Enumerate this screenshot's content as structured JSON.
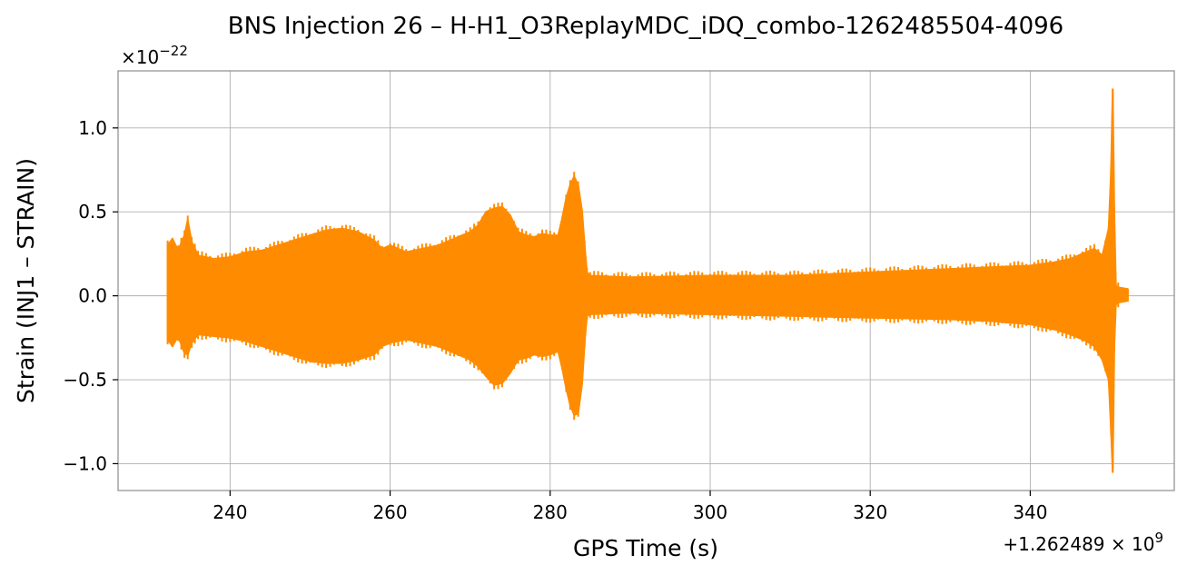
{
  "chart_data": {
    "type": "line",
    "title": "BNS Injection 26 – H-H1_O3ReplayMDC_iDQ_combo-1262485504-4096",
    "xlabel": "GPS Time (s)",
    "ylabel": "Strain (INJ1 – STRAIN)",
    "x_offset_label": "+1.262489 × 10",
    "x_offset_exp": "9",
    "y_scale_label": "×10",
    "y_scale_exp": "−22",
    "xlim": [
      226,
      358
    ],
    "ylim": [
      -1.16,
      1.34
    ],
    "xticks": [
      240,
      260,
      280,
      300,
      320,
      340
    ],
    "xtick_labels": [
      "240",
      "260",
      "280",
      "300",
      "320",
      "340"
    ],
    "yticks": [
      -1.0,
      -0.5,
      0.0,
      0.5,
      1.0
    ],
    "ytick_labels": [
      "−1.0",
      "−0.5",
      "0.0",
      "0.5",
      "1.0"
    ],
    "grid": true,
    "series": [
      {
        "color": "#ff8c00",
        "envelope_x": [
          232.2,
          232.8,
          233.5,
          234.3,
          234.7,
          235.2,
          236,
          238,
          240,
          242,
          244,
          246,
          248,
          250,
          252,
          254,
          256,
          258,
          259,
          260,
          262,
          264,
          266,
          268,
          270,
          271,
          272,
          273,
          274,
          275,
          276,
          277,
          278,
          279,
          280,
          281,
          281.5,
          282,
          282.5,
          283,
          283.5,
          284,
          284.3,
          284.6,
          285,
          290,
          300,
          310,
          320,
          330,
          335,
          340,
          343,
          345,
          347,
          348,
          349,
          349.8,
          350.1,
          350.3,
          350.5,
          350.7,
          351,
          352.2
        ],
        "envelope_upper": [
          0.3,
          0.34,
          0.27,
          0.36,
          0.45,
          0.32,
          0.24,
          0.22,
          0.23,
          0.26,
          0.27,
          0.3,
          0.33,
          0.36,
          0.39,
          0.4,
          0.38,
          0.33,
          0.28,
          0.3,
          0.26,
          0.28,
          0.3,
          0.34,
          0.38,
          0.42,
          0.5,
          0.52,
          0.53,
          0.48,
          0.38,
          0.36,
          0.35,
          0.37,
          0.36,
          0.36,
          0.46,
          0.58,
          0.66,
          0.71,
          0.66,
          0.5,
          0.3,
          0.14,
          0.12,
          0.11,
          0.12,
          0.12,
          0.14,
          0.16,
          0.17,
          0.18,
          0.2,
          0.22,
          0.26,
          0.28,
          0.24,
          0.4,
          0.74,
          1.23,
          0.5,
          0.06,
          0.05,
          0.04
        ],
        "envelope_lower": [
          -0.26,
          -0.3,
          -0.24,
          -0.34,
          -0.35,
          -0.28,
          -0.23,
          -0.24,
          -0.25,
          -0.27,
          -0.3,
          -0.33,
          -0.36,
          -0.39,
          -0.4,
          -0.4,
          -0.38,
          -0.35,
          -0.3,
          -0.28,
          -0.26,
          -0.28,
          -0.3,
          -0.34,
          -0.38,
          -0.42,
          -0.48,
          -0.53,
          -0.52,
          -0.46,
          -0.38,
          -0.37,
          -0.35,
          -0.36,
          -0.35,
          -0.33,
          -0.43,
          -0.55,
          -0.65,
          -0.71,
          -0.7,
          -0.52,
          -0.28,
          -0.12,
          -0.11,
          -0.1,
          -0.11,
          -0.12,
          -0.13,
          -0.14,
          -0.15,
          -0.17,
          -0.2,
          -0.23,
          -0.27,
          -0.3,
          -0.38,
          -0.5,
          -0.8,
          -1.05,
          -0.3,
          -0.05,
          -0.04,
          -0.03
        ]
      }
    ]
  }
}
